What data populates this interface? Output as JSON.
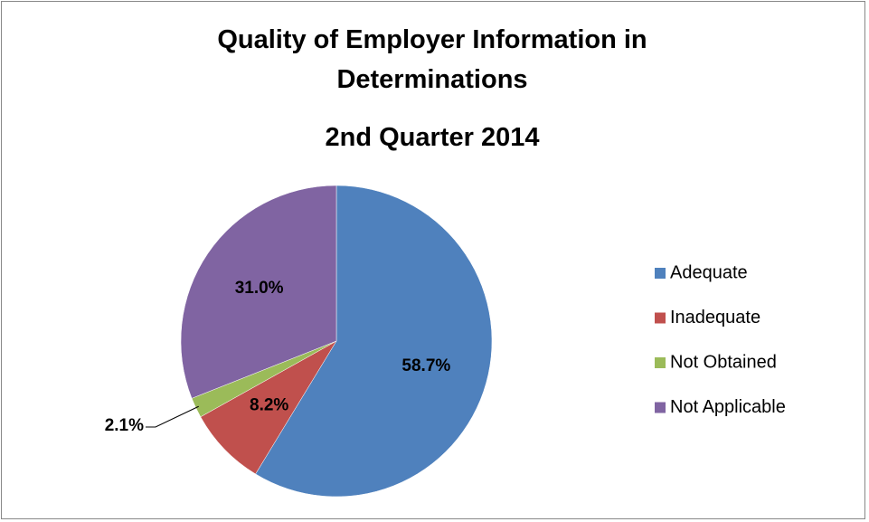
{
  "chart_data": {
    "type": "pie",
    "title": "Quality of Employer Information in Determinations",
    "subtitle": "2nd Quarter 2014",
    "categories": [
      "Adequate",
      "Inadequate",
      "Not Obtained",
      "Not Applicable"
    ],
    "values": [
      58.7,
      8.2,
      2.1,
      31.0
    ],
    "value_labels": [
      "58.7%",
      "8.2%",
      "2.1%",
      "31.0%"
    ],
    "colors": [
      "#4f81bd",
      "#c0504d",
      "#9bbb59",
      "#8064a2"
    ],
    "legend": "right"
  }
}
